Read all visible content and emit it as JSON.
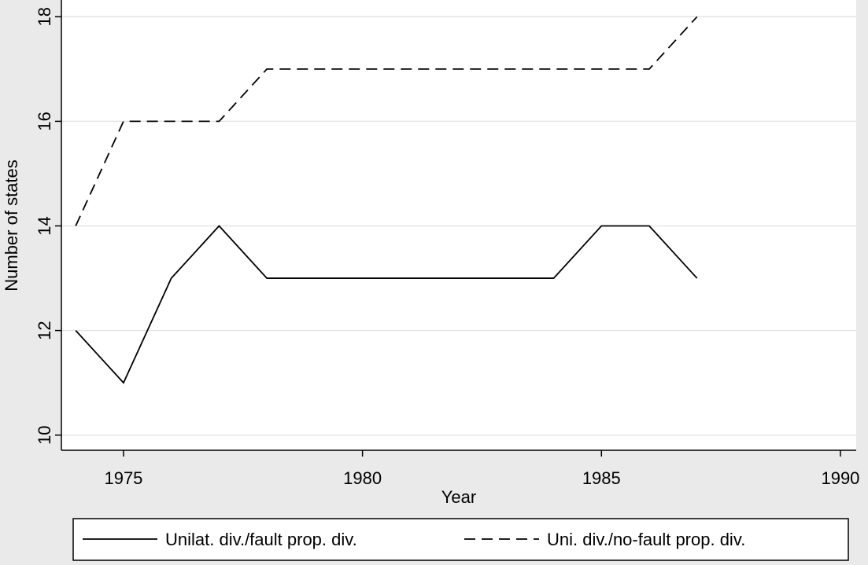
{
  "chart_data": {
    "type": "line",
    "x_label": "Year",
    "y_label": "Number of states",
    "x": [
      1974,
      1975,
      1976,
      1977,
      1978,
      1979,
      1980,
      1981,
      1982,
      1983,
      1984,
      1985,
      1986,
      1987
    ],
    "series": [
      {
        "name": "Unilat. div./fault prop. div.",
        "color": "#000000",
        "dash": "solid",
        "values": [
          12,
          11,
          13,
          14,
          13,
          13,
          13,
          13,
          13,
          13,
          13,
          14,
          14,
          13
        ]
      },
      {
        "name": "Uni. div./no-fault prop. div.",
        "color": "#000000",
        "dash": "dashed",
        "values": [
          14,
          16,
          16,
          16,
          17,
          17,
          17,
          17,
          17,
          17,
          17,
          17,
          17,
          18
        ]
      }
    ],
    "xlim": [
      1973.7,
      1990.33
    ],
    "xticks": [
      1975,
      1980,
      1985,
      1990
    ],
    "ylim": [
      9.71,
      18.32
    ],
    "yticks": [
      10,
      12,
      14,
      16,
      18
    ],
    "grid": true,
    "legend": "bottom"
  }
}
